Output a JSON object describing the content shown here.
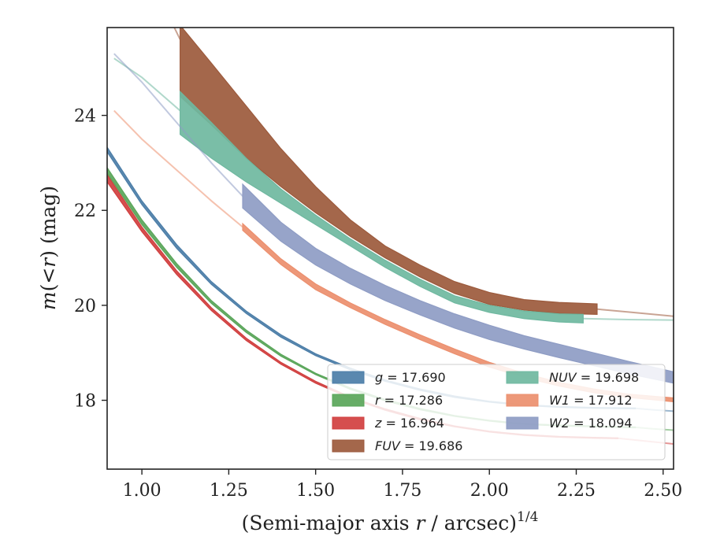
{
  "chart_data": {
    "type": "line",
    "title": "",
    "xlabel": "(Semi-major axis r / arcsec)",
    "xlabel_parts": {
      "prefix": "(Semi-major axis ",
      "var": "r",
      "suffix": " / arcsec)",
      "power": "1/4"
    },
    "ylabel": "m(< r) (mag)",
    "ylabel_parts": {
      "m": "m",
      "lt": "(<",
      "r": "r",
      "close": ")",
      "unit": " (mag)"
    },
    "xlim": [
      0.9,
      2.53
    ],
    "ylim": [
      25.85,
      16.55
    ],
    "y_inverted": true,
    "xticks": [
      1.0,
      1.25,
      1.5,
      1.75,
      2.0,
      2.25,
      2.5
    ],
    "xtick_labels": [
      "1.00",
      "1.25",
      "1.50",
      "1.75",
      "2.00",
      "2.25",
      "2.50"
    ],
    "yticks": [
      18,
      20,
      22,
      24
    ],
    "ytick_labels": [
      "18",
      "20",
      "22",
      "24"
    ],
    "grid": false,
    "legend_placement": "lower-right",
    "series": [
      {
        "name": "g = 17.690",
        "legend_var": "g",
        "legend_value": "17.690",
        "color": "#4c7ea8",
        "band_range": [
          0.9,
          2.42
        ],
        "lower": [
          [
            0.9,
            23.33
          ],
          [
            1.0,
            22.2
          ],
          [
            1.1,
            21.28
          ],
          [
            1.2,
            20.5
          ],
          [
            1.3,
            19.88
          ],
          [
            1.4,
            19.38
          ],
          [
            1.5,
            18.98
          ],
          [
            1.6,
            18.68
          ],
          [
            1.7,
            18.43
          ],
          [
            1.8,
            18.24
          ],
          [
            1.9,
            18.09
          ],
          [
            2.0,
            17.98
          ],
          [
            2.1,
            17.91
          ],
          [
            2.2,
            17.87
          ],
          [
            2.3,
            17.85
          ],
          [
            2.42,
            17.84
          ]
        ],
        "upper": [
          [
            0.9,
            23.23
          ],
          [
            1.0,
            22.12
          ],
          [
            1.1,
            21.2
          ],
          [
            1.2,
            20.44
          ],
          [
            1.3,
            19.83
          ],
          [
            1.4,
            19.33
          ],
          [
            1.5,
            18.94
          ],
          [
            1.6,
            18.64
          ],
          [
            1.7,
            18.4
          ],
          [
            1.8,
            18.21
          ],
          [
            1.9,
            18.06
          ],
          [
            2.0,
            17.96
          ],
          [
            2.1,
            17.89
          ],
          [
            2.2,
            17.85
          ],
          [
            2.3,
            17.83
          ],
          [
            2.42,
            17.82
          ]
        ],
        "extension": [
          [
            2.42,
            17.83
          ],
          [
            2.47,
            17.8
          ],
          [
            2.53,
            17.77
          ]
        ]
      },
      {
        "name": "r = 17.286",
        "legend_var": "r",
        "legend_value": "17.286",
        "color": "#5aa65a",
        "band_range": [
          0.9,
          2.42
        ],
        "lower": [
          [
            0.9,
            22.9
          ],
          [
            1.0,
            21.8
          ],
          [
            1.1,
            20.88
          ],
          [
            1.2,
            20.1
          ],
          [
            1.3,
            19.48
          ],
          [
            1.4,
            18.97
          ],
          [
            1.5,
            18.57
          ],
          [
            1.6,
            18.26
          ],
          [
            1.7,
            18.02
          ],
          [
            1.8,
            17.83
          ],
          [
            1.9,
            17.68
          ],
          [
            2.0,
            17.58
          ],
          [
            2.1,
            17.51
          ],
          [
            2.2,
            17.48
          ],
          [
            2.3,
            17.46
          ],
          [
            2.42,
            17.44
          ]
        ],
        "upper": [
          [
            0.9,
            22.78
          ],
          [
            1.0,
            21.7
          ],
          [
            1.1,
            20.8
          ],
          [
            1.2,
            20.04
          ],
          [
            1.3,
            19.43
          ],
          [
            1.4,
            18.93
          ],
          [
            1.5,
            18.54
          ],
          [
            1.6,
            18.23
          ],
          [
            1.7,
            17.99
          ],
          [
            1.8,
            17.8
          ],
          [
            1.9,
            17.66
          ],
          [
            2.0,
            17.56
          ],
          [
            2.1,
            17.49
          ],
          [
            2.2,
            17.46
          ],
          [
            2.3,
            17.44
          ],
          [
            2.42,
            17.42
          ]
        ],
        "extension": [
          [
            2.42,
            17.43
          ],
          [
            2.47,
            17.4
          ],
          [
            2.53,
            17.37
          ]
        ]
      },
      {
        "name": "z = 16.964",
        "legend_var": "z",
        "legend_value": "16.964",
        "color": "#d13f3f",
        "band_range": [
          0.9,
          2.37
        ],
        "lower": [
          [
            0.9,
            22.75
          ],
          [
            1.0,
            21.65
          ],
          [
            1.1,
            20.73
          ],
          [
            1.2,
            19.95
          ],
          [
            1.3,
            19.31
          ],
          [
            1.4,
            18.8
          ],
          [
            1.5,
            18.4
          ],
          [
            1.6,
            18.07
          ],
          [
            1.7,
            17.82
          ],
          [
            1.8,
            17.62
          ],
          [
            1.9,
            17.46
          ],
          [
            2.0,
            17.35
          ],
          [
            2.1,
            17.28
          ],
          [
            2.2,
            17.24
          ],
          [
            2.3,
            17.22
          ],
          [
            2.37,
            17.21
          ]
        ],
        "upper": [
          [
            0.9,
            22.6
          ],
          [
            1.0,
            21.55
          ],
          [
            1.1,
            20.65
          ],
          [
            1.2,
            19.89
          ],
          [
            1.3,
            19.26
          ],
          [
            1.4,
            18.76
          ],
          [
            1.5,
            18.36
          ],
          [
            1.6,
            18.04
          ],
          [
            1.7,
            17.79
          ],
          [
            1.8,
            17.59
          ],
          [
            1.9,
            17.44
          ],
          [
            2.0,
            17.33
          ],
          [
            2.1,
            17.26
          ],
          [
            2.2,
            17.22
          ],
          [
            2.3,
            17.2
          ],
          [
            2.37,
            17.19
          ]
        ],
        "extension": [
          [
            2.37,
            17.2
          ],
          [
            2.45,
            17.14
          ],
          [
            2.53,
            17.08
          ]
        ]
      },
      {
        "name": "FUV = 19.686",
        "legend_var": "FUV",
        "legend_value": "19.686",
        "color": "#9c5a3c",
        "band_range": [
          1.11,
          2.31
        ],
        "lower": [
          [
            1.11,
            25.9
          ],
          [
            1.2,
            25.1
          ],
          [
            1.3,
            24.2
          ],
          [
            1.4,
            23.3
          ],
          [
            1.5,
            22.5
          ],
          [
            1.6,
            21.8
          ],
          [
            1.7,
            21.25
          ],
          [
            1.8,
            20.85
          ],
          [
            1.9,
            20.5
          ],
          [
            2.0,
            20.27
          ],
          [
            2.1,
            20.12
          ],
          [
            2.2,
            20.06
          ],
          [
            2.31,
            20.03
          ]
        ],
        "upper": [
          [
            1.11,
            24.4
          ],
          [
            1.2,
            23.8
          ],
          [
            1.3,
            23.1
          ],
          [
            1.4,
            22.5
          ],
          [
            1.5,
            21.95
          ],
          [
            1.6,
            21.45
          ],
          [
            1.7,
            21.0
          ],
          [
            1.8,
            20.6
          ],
          [
            1.9,
            20.25
          ],
          [
            2.0,
            20.02
          ],
          [
            2.1,
            19.9
          ],
          [
            2.2,
            19.83
          ],
          [
            2.31,
            19.81
          ]
        ],
        "extension_before": [
          [
            1.05,
            26.5
          ],
          [
            1.11,
            25.6
          ]
        ],
        "extension": [
          [
            2.31,
            19.92
          ],
          [
            2.4,
            19.86
          ],
          [
            2.53,
            19.77
          ]
        ]
      },
      {
        "name": "NUV = 19.698",
        "legend_var": "NUV",
        "legend_value": "19.698",
        "color": "#6fb8a0",
        "band_range": [
          1.11,
          2.27
        ],
        "lower": [
          [
            1.11,
            24.5
          ],
          [
            1.2,
            23.85
          ],
          [
            1.3,
            23.1
          ],
          [
            1.4,
            22.45
          ],
          [
            1.5,
            21.9
          ],
          [
            1.6,
            21.4
          ],
          [
            1.7,
            20.95
          ],
          [
            1.8,
            20.55
          ],
          [
            1.9,
            20.2
          ],
          [
            2.0,
            20.0
          ],
          [
            2.1,
            19.88
          ],
          [
            2.2,
            19.82
          ],
          [
            2.27,
            19.81
          ]
        ],
        "upper": [
          [
            1.11,
            23.6
          ],
          [
            1.2,
            23.1
          ],
          [
            1.3,
            22.6
          ],
          [
            1.4,
            22.15
          ],
          [
            1.5,
            21.7
          ],
          [
            1.6,
            21.25
          ],
          [
            1.7,
            20.8
          ],
          [
            1.8,
            20.4
          ],
          [
            1.9,
            20.05
          ],
          [
            2.0,
            19.85
          ],
          [
            2.1,
            19.72
          ],
          [
            2.2,
            19.65
          ],
          [
            2.27,
            19.63
          ]
        ],
        "extension_before": [
          [
            0.92,
            25.2
          ],
          [
            1.0,
            24.8
          ],
          [
            1.11,
            24.1
          ]
        ],
        "extension": [
          [
            2.27,
            19.72
          ],
          [
            2.4,
            19.7
          ],
          [
            2.53,
            19.69
          ]
        ]
      },
      {
        "name": "W1 = 17.912",
        "legend_var": "W1",
        "legend_value": "17.912",
        "color": "#ec8f6e",
        "band_range": [
          1.29,
          2.53
        ],
        "lower": [
          [
            1.29,
            21.72
          ],
          [
            1.4,
            20.98
          ],
          [
            1.5,
            20.45
          ],
          [
            1.6,
            20.05
          ],
          [
            1.7,
            19.7
          ],
          [
            1.8,
            19.38
          ],
          [
            1.9,
            19.08
          ],
          [
            2.0,
            18.8
          ],
          [
            2.1,
            18.57
          ],
          [
            2.2,
            18.38
          ],
          [
            2.3,
            18.24
          ],
          [
            2.4,
            18.13
          ],
          [
            2.53,
            18.05
          ]
        ],
        "upper": [
          [
            1.29,
            21.58
          ],
          [
            1.4,
            20.86
          ],
          [
            1.5,
            20.33
          ],
          [
            1.6,
            19.95
          ],
          [
            1.7,
            19.6
          ],
          [
            1.8,
            19.28
          ],
          [
            1.9,
            18.98
          ],
          [
            2.0,
            18.7
          ],
          [
            2.1,
            18.48
          ],
          [
            2.2,
            18.3
          ],
          [
            2.3,
            18.16
          ],
          [
            2.4,
            18.06
          ],
          [
            2.53,
            17.97
          ]
        ],
        "extension_before": [
          [
            0.92,
            24.1
          ],
          [
            1.0,
            23.5
          ],
          [
            1.1,
            22.85
          ],
          [
            1.2,
            22.2
          ],
          [
            1.29,
            21.65
          ]
        ]
      },
      {
        "name": "W2 = 18.094",
        "legend_var": "W2",
        "legend_value": "18.094",
        "color": "#8e9cc4",
        "band_range": [
          1.29,
          2.53
        ],
        "lower": [
          [
            1.29,
            22.55
          ],
          [
            1.4,
            21.75
          ],
          [
            1.5,
            21.2
          ],
          [
            1.6,
            20.78
          ],
          [
            1.7,
            20.42
          ],
          [
            1.8,
            20.1
          ],
          [
            1.9,
            19.82
          ],
          [
            2.0,
            19.58
          ],
          [
            2.1,
            19.36
          ],
          [
            2.2,
            19.18
          ],
          [
            2.3,
            19.0
          ],
          [
            2.4,
            18.82
          ],
          [
            2.53,
            18.6
          ]
        ],
        "upper": [
          [
            1.29,
            22.05
          ],
          [
            1.4,
            21.35
          ],
          [
            1.5,
            20.85
          ],
          [
            1.6,
            20.45
          ],
          [
            1.7,
            20.1
          ],
          [
            1.8,
            19.8
          ],
          [
            1.9,
            19.52
          ],
          [
            2.0,
            19.28
          ],
          [
            2.1,
            19.08
          ],
          [
            2.2,
            18.9
          ],
          [
            2.3,
            18.73
          ],
          [
            2.4,
            18.56
          ],
          [
            2.53,
            18.36
          ]
        ],
        "extension_before": [
          [
            0.92,
            25.3
          ],
          [
            1.0,
            24.7
          ],
          [
            1.1,
            23.85
          ],
          [
            1.2,
            23.0
          ],
          [
            1.29,
            22.3
          ]
        ]
      }
    ]
  }
}
